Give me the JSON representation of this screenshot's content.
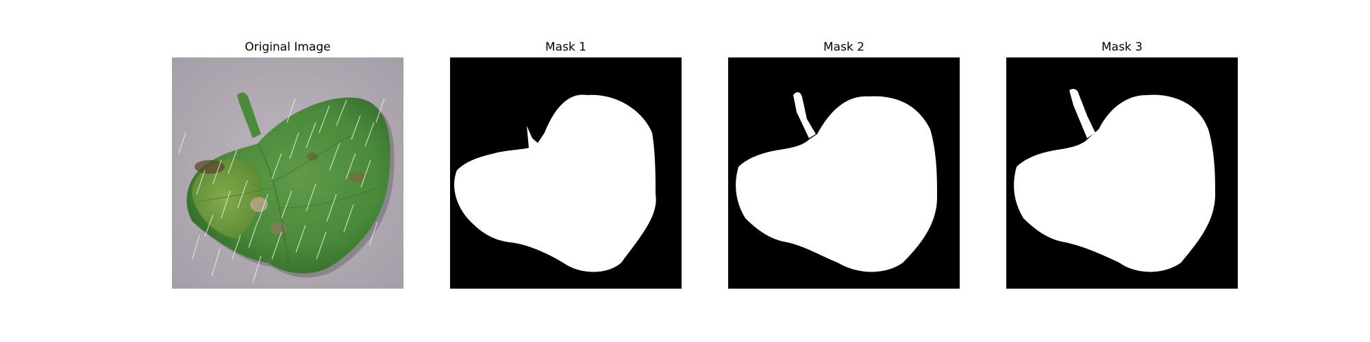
{
  "figure": {
    "panels": [
      {
        "title": "Original Image"
      },
      {
        "title": "Mask 1"
      },
      {
        "title": "Mask 2"
      },
      {
        "title": "Mask 3"
      }
    ]
  },
  "colors": {
    "background": "#ffffff",
    "mask_background": "#000000",
    "mask_foreground": "#ffffff",
    "leaf_green": "#4a8a3a",
    "surface_gray": "#b5aeb5"
  }
}
